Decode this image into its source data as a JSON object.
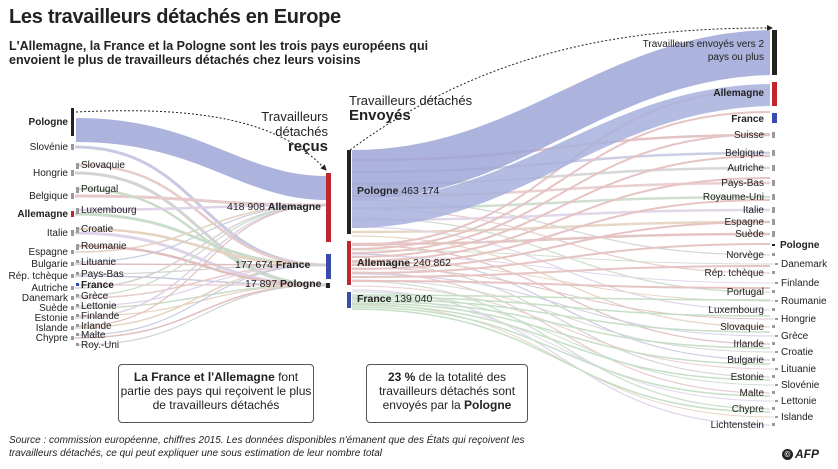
{
  "title": "Les travailleurs détachés en Europe",
  "subtitle": "L'Allemagne, la France et la Pologne sont les trois pays européens qui envoient le plus de travailleurs détachés chez leurs voisins",
  "headers": {
    "received_line1": "Travailleurs détachés",
    "received_line2": "reçus",
    "sent_line1": "Travailleurs détachés",
    "sent_line2": "Envoyés"
  },
  "left_countries": [
    {
      "name": "Pologne",
      "bold": true
    },
    {
      "name": "Slovénie",
      "bold": false
    },
    {
      "name": "Hongrie",
      "bold": false
    },
    {
      "name": "Belgique",
      "bold": false
    },
    {
      "name": "Allemagne",
      "bold": true
    },
    {
      "name": "Italie",
      "bold": false
    },
    {
      "name": "Espagne",
      "bold": false
    },
    {
      "name": "Bulgarie",
      "bold": false
    },
    {
      "name": "Rép. tchèque",
      "bold": false
    },
    {
      "name": "Autriche",
      "bold": false
    },
    {
      "name": "Danemark",
      "bold": false
    },
    {
      "name": "Suède",
      "bold": false
    },
    {
      "name": "Estonie",
      "bold": false
    },
    {
      "name": "Islande",
      "bold": false
    },
    {
      "name": "Chypre",
      "bold": false
    }
  ],
  "left_countries_b": [
    {
      "name": "Slovaquie",
      "bold": false
    },
    {
      "name": "Portugal",
      "bold": false
    },
    {
      "name": "Luxembourg",
      "bold": false
    },
    {
      "name": "Croatie",
      "bold": false
    },
    {
      "name": "Roumanie",
      "bold": false
    },
    {
      "name": "Lituanie",
      "bold": false
    },
    {
      "name": "Pays-Bas",
      "bold": false
    },
    {
      "name": "France",
      "bold": true
    },
    {
      "name": "Grèce",
      "bold": false
    },
    {
      "name": "Lettonie",
      "bold": false
    },
    {
      "name": "Finlande",
      "bold": false
    },
    {
      "name": "Irlande",
      "bold": false
    },
    {
      "name": "Malte",
      "bold": false
    },
    {
      "name": "Roy.-Uni",
      "bold": false
    }
  ],
  "received": [
    {
      "value": "418 908",
      "country": "Allemagne"
    },
    {
      "value": "177 674",
      "country": "France"
    },
    {
      "value": "17 897",
      "country": "Pologne"
    }
  ],
  "sent": [
    {
      "country": "Pologne",
      "value": "463 174"
    },
    {
      "country": "Allemagne",
      "value": "240 862"
    },
    {
      "country": "France",
      "value": "139 040"
    }
  ],
  "right_top": {
    "group_label": "Travailleurs envoyés vers 2 pays ou plus",
    "allemagne": "Allemagne",
    "france": "France"
  },
  "right_list_a": [
    "Suisse",
    "Belgique",
    "Autriche",
    "Pays-Bas",
    "Royaume-Uni",
    "Italie",
    "Espagne",
    "Suède"
  ],
  "right_pologne": "Pologne",
  "right_list_b": [
    "Norvège",
    "Rép. tchèque",
    "Portugal",
    "Luxembourg",
    "Slovaquie",
    "Irlande",
    "Bulgarie",
    "Estonie",
    "Malte",
    "Chypre",
    "Lichtenstein"
  ],
  "right_list_c": [
    "Danemark",
    "Finlande",
    "Roumanie",
    "Hongrie",
    "Grèce",
    "Croatie",
    "Lituanie",
    "Slovénie",
    "Lettonie",
    "Islande"
  ],
  "box1": {
    "pre": "La France et l'Allemagne",
    "post": " font partie des pays qui reçoivent le plus de travailleurs détachés"
  },
  "box2": {
    "pct": "23 %",
    "mid": " de la totalité des travailleurs détachés sont envoyés par la ",
    "country": "Pologne"
  },
  "source": "Source : commission européenne, chiffres 2015. Les données disponibles n'émanent que des États qui reçoivent les travailleurs détachés, ce qui peut expliquer une sous estimation de leur nombre total",
  "logo": "AFP",
  "colors": {
    "pologne_flow": "#9ea6d6",
    "allemagne": "#c0262d",
    "france": "#3a4aa8",
    "dark": "#222222",
    "gray_marker": "#9a9a9a"
  }
}
